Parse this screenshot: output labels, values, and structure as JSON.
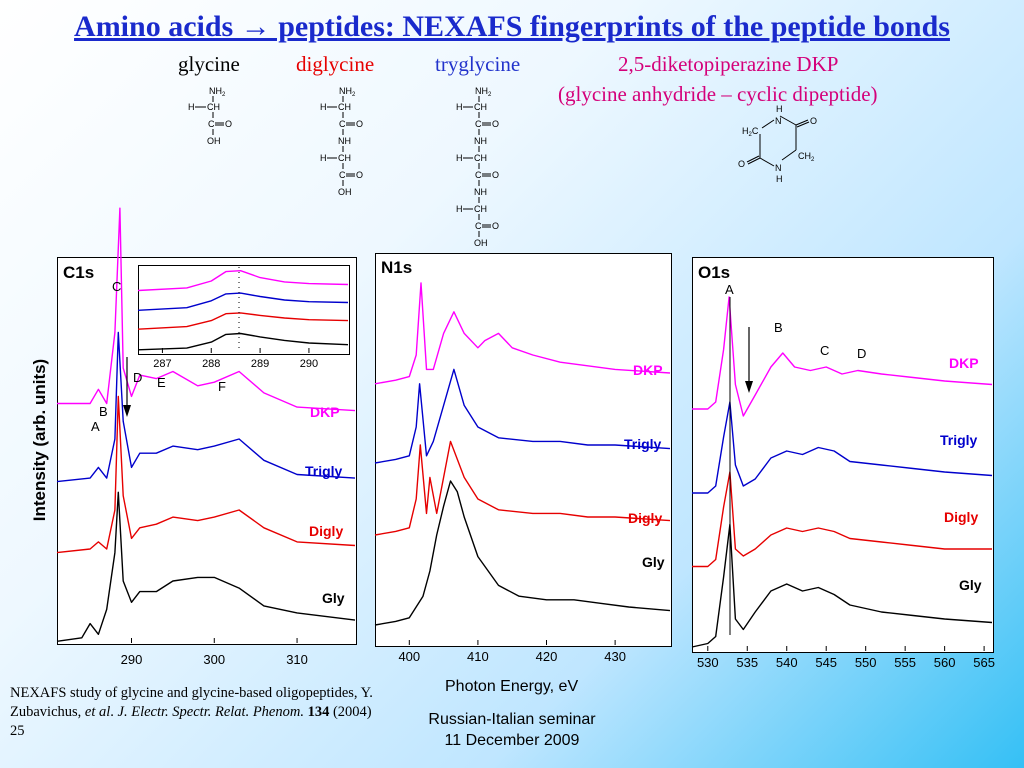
{
  "title": "Amino acids → peptides: NEXAFS fingerprints of the peptide bonds",
  "molecules": {
    "glycine": "glycine",
    "diglycine": "diglycine",
    "tryglycine": "tryglycine",
    "dkp": "2,5-diketopiperazine DKP",
    "dkp_sub": "(glycine anhydride – cyclic dipeptide)"
  },
  "colors": {
    "dkp": "#ff00ff",
    "trigly": "#0000cc",
    "digly": "#e60000",
    "gly": "#000000",
    "title": "#1a2acc"
  },
  "chart_data": [
    {
      "type": "line",
      "title": "C1s",
      "ylabel": "Intensity (arb. units)",
      "xlim": [
        281,
        317
      ],
      "x_ticks": [
        290,
        300,
        310
      ],
      "peak_labels": [
        "A",
        "B",
        "C",
        "D",
        "E",
        "F"
      ],
      "series": [
        {
          "name": "DKP",
          "x": [
            281,
            285,
            286,
            287,
            288,
            288.6,
            289,
            290,
            291,
            293,
            295,
            298,
            300,
            303,
            306,
            310,
            317
          ],
          "values": [
            0.7,
            0.7,
            0.74,
            0.7,
            0.9,
            1.25,
            0.8,
            0.72,
            0.78,
            0.77,
            0.79,
            0.75,
            0.76,
            0.79,
            0.73,
            0.69,
            0.68
          ]
        },
        {
          "name": "Trigly",
          "x": [
            281,
            285,
            286,
            287,
            288,
            288.4,
            289,
            290,
            291,
            293,
            295,
            298,
            300,
            303,
            306,
            310,
            317
          ],
          "values": [
            0.48,
            0.49,
            0.52,
            0.49,
            0.6,
            0.9,
            0.65,
            0.52,
            0.56,
            0.56,
            0.58,
            0.57,
            0.58,
            0.6,
            0.54,
            0.5,
            0.49
          ]
        },
        {
          "name": "Digly",
          "x": [
            281,
            285,
            286,
            287,
            288,
            288.4,
            289,
            290,
            291,
            293,
            295,
            298,
            300,
            303,
            306,
            310,
            317
          ],
          "values": [
            0.28,
            0.29,
            0.31,
            0.29,
            0.4,
            0.72,
            0.44,
            0.32,
            0.35,
            0.36,
            0.38,
            0.37,
            0.38,
            0.4,
            0.35,
            0.31,
            0.3
          ]
        },
        {
          "name": "Gly",
          "x": [
            281,
            284,
            285,
            286,
            287,
            288,
            288.4,
            289,
            290,
            291,
            293,
            295,
            298,
            300,
            303,
            306,
            310,
            317
          ],
          "values": [
            0.03,
            0.04,
            0.08,
            0.05,
            0.12,
            0.28,
            0.45,
            0.2,
            0.14,
            0.17,
            0.17,
            0.2,
            0.21,
            0.21,
            0.18,
            0.13,
            0.11,
            0.09
          ]
        }
      ],
      "inset": {
        "xlim": [
          286.5,
          290.8
        ],
        "x_ticks": [
          287,
          288,
          289,
          290
        ],
        "series": [
          {
            "name": "DKP",
            "x": [
              286.5,
              287.5,
              288.0,
              288.3,
              288.6,
              289.0,
              289.5,
              290.0,
              290.8
            ],
            "values": [
              0.75,
              0.78,
              0.86,
              0.97,
              0.98,
              0.9,
              0.85,
              0.83,
              0.82
            ]
          },
          {
            "name": "Trigly",
            "x": [
              286.5,
              287.5,
              288.0,
              288.3,
              288.6,
              289.0,
              289.5,
              290.0,
              290.8
            ],
            "values": [
              0.52,
              0.55,
              0.63,
              0.71,
              0.72,
              0.68,
              0.64,
              0.62,
              0.61
            ]
          },
          {
            "name": "Digly",
            "x": [
              286.5,
              287.5,
              288.0,
              288.3,
              288.6,
              289.0,
              289.5,
              290.0,
              290.8
            ],
            "values": [
              0.3,
              0.33,
              0.4,
              0.48,
              0.49,
              0.46,
              0.43,
              0.41,
              0.4
            ]
          },
          {
            "name": "Gly",
            "x": [
              286.5,
              287.5,
              288.0,
              288.3,
              288.6,
              289.0,
              289.5,
              290.0,
              290.8
            ],
            "values": [
              0.06,
              0.08,
              0.15,
              0.24,
              0.25,
              0.21,
              0.17,
              0.14,
              0.12
            ]
          }
        ]
      }
    },
    {
      "type": "line",
      "title": "N1s",
      "xlabel": "Photon Energy, eV",
      "xlim": [
        395,
        438
      ],
      "x_ticks": [
        400,
        410,
        420,
        430
      ],
      "series": [
        {
          "name": "DKP",
          "x": [
            395,
            398,
            400,
            401,
            401.7,
            402.5,
            403.5,
            405,
            406.5,
            408,
            410,
            411,
            413,
            415,
            418,
            422,
            426,
            430,
            438
          ],
          "values": [
            0.72,
            0.73,
            0.74,
            0.8,
            1.0,
            0.76,
            0.76,
            0.86,
            0.92,
            0.86,
            0.82,
            0.84,
            0.86,
            0.82,
            0.8,
            0.78,
            0.77,
            0.76,
            0.75
          ]
        },
        {
          "name": "Trigly",
          "x": [
            395,
            398,
            400,
            401,
            401.5,
            402.5,
            403.5,
            405,
            406.5,
            408,
            410,
            413,
            418,
            422,
            426,
            430,
            438
          ],
          "values": [
            0.5,
            0.51,
            0.52,
            0.6,
            0.72,
            0.52,
            0.56,
            0.66,
            0.76,
            0.66,
            0.6,
            0.57,
            0.56,
            0.56,
            0.55,
            0.55,
            0.54
          ]
        },
        {
          "name": "Digly",
          "x": [
            395,
            398,
            400,
            401,
            401.6,
            402.5,
            403,
            404,
            406,
            408,
            410,
            413,
            418,
            422,
            426,
            430,
            438
          ],
          "values": [
            0.3,
            0.31,
            0.32,
            0.4,
            0.55,
            0.36,
            0.46,
            0.36,
            0.56,
            0.46,
            0.4,
            0.37,
            0.36,
            0.36,
            0.35,
            0.35,
            0.34
          ]
        },
        {
          "name": "Gly",
          "x": [
            395,
            398,
            400,
            402,
            403,
            404,
            405,
            406,
            407,
            408,
            410,
            413,
            416,
            420,
            424,
            428,
            432,
            438
          ],
          "values": [
            0.05,
            0.06,
            0.07,
            0.13,
            0.2,
            0.3,
            0.38,
            0.45,
            0.42,
            0.35,
            0.24,
            0.16,
            0.13,
            0.12,
            0.12,
            0.11,
            0.1,
            0.09
          ]
        }
      ]
    },
    {
      "type": "line",
      "title": "O1s",
      "xlim": [
        528,
        566
      ],
      "x_ticks": [
        530,
        535,
        540,
        545,
        550,
        555,
        560,
        565
      ],
      "peak_labels": [
        "A",
        "B",
        "C",
        "D"
      ],
      "series": [
        {
          "name": "DKP",
          "x": [
            528,
            530,
            531,
            532,
            532.7,
            533.5,
            534.5,
            536,
            538,
            539.5,
            541,
            543,
            545,
            547,
            549,
            552,
            556,
            560,
            566
          ],
          "values": [
            0.68,
            0.68,
            0.7,
            0.85,
            1.0,
            0.75,
            0.66,
            0.72,
            0.8,
            0.84,
            0.8,
            0.79,
            0.8,
            0.78,
            0.79,
            0.78,
            0.77,
            0.76,
            0.75
          ]
        },
        {
          "name": "Trigly",
          "x": [
            528,
            530,
            531,
            532,
            532.8,
            533.5,
            534.5,
            536,
            538,
            540,
            542,
            544,
            546,
            548,
            552,
            556,
            560,
            566
          ],
          "values": [
            0.44,
            0.44,
            0.46,
            0.6,
            0.7,
            0.52,
            0.46,
            0.48,
            0.54,
            0.56,
            0.55,
            0.57,
            0.56,
            0.53,
            0.52,
            0.51,
            0.5,
            0.49
          ]
        },
        {
          "name": "Digly",
          "x": [
            528,
            530,
            531,
            532,
            532.8,
            533.5,
            534.5,
            536,
            538,
            540,
            542,
            544,
            546,
            548,
            552,
            556,
            560,
            566
          ],
          "values": [
            0.23,
            0.23,
            0.25,
            0.4,
            0.5,
            0.28,
            0.26,
            0.28,
            0.32,
            0.34,
            0.33,
            0.34,
            0.33,
            0.31,
            0.3,
            0.29,
            0.28,
            0.28
          ]
        },
        {
          "name": "Gly",
          "x": [
            528,
            530,
            531,
            532,
            532.8,
            533.5,
            534.5,
            536,
            538,
            540,
            542,
            544,
            546,
            548,
            552,
            556,
            560,
            566
          ],
          "values": [
            0.0,
            0.01,
            0.03,
            0.2,
            0.35,
            0.08,
            0.05,
            0.1,
            0.16,
            0.18,
            0.16,
            0.17,
            0.15,
            0.12,
            0.1,
            0.09,
            0.08,
            0.07
          ]
        }
      ]
    }
  ],
  "reference": {
    "text_a": "NEXAFS study of glycine and glycine-based oligopeptides, Y. Zubavichus, ",
    "etal": "et al",
    "text_b": ". ",
    "journal": "J. Electr. Spectr. Relat. Phenom.",
    "volume": "134",
    "year_pages": "(2004) 25"
  },
  "seminar": {
    "line1": "Russian-Italian seminar",
    "line2": "11 December 2009"
  }
}
